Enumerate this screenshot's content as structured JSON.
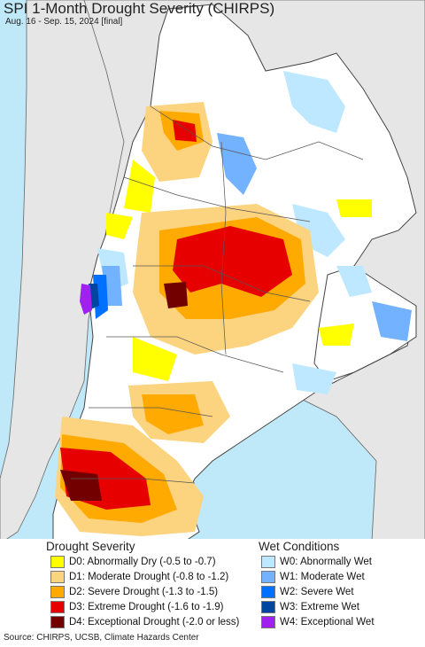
{
  "title": "SPI 1-Month Drought Severity (CHIRPS)",
  "subtitle": "Aug. 16 - Sep. 15, 2024 [final]",
  "legend": {
    "drought_heading": "Drought Severity",
    "wet_heading": "Wet Conditions",
    "drought": [
      {
        "label": "D0: Abnormally Dry (-0.5 to -0.7)",
        "color": "#ffff00"
      },
      {
        "label": "D1: Moderate Drought (-0.8 to -1.2)",
        "color": "#fcd37f"
      },
      {
        "label": "D2: Severe Drought (-1.3 to -1.5)",
        "color": "#ffaa00"
      },
      {
        "label": "D3: Extreme Drought (-1.6 to -1.9)",
        "color": "#e60000"
      },
      {
        "label": "D4: Exceptional Drought (-2.0 or less)",
        "color": "#730000"
      }
    ],
    "wet": [
      {
        "label": "W0: Abnormally Wet",
        "color": "#bee8ff"
      },
      {
        "label": "W1: Moderate Wet",
        "color": "#73b2ff"
      },
      {
        "label": "W2: Severe Wet",
        "color": "#0070ff"
      },
      {
        "label": "W3: Extreme Wet",
        "color": "#0046a0"
      },
      {
        "label": "W4: Exceptional Wet",
        "color": "#a020f0"
      }
    ]
  },
  "map_colors": {
    "ocean": "#bfe8f8",
    "outside_land": "#e6e6e6",
    "study_land": "#ffffff",
    "border": "#555555"
  },
  "source": "Source: CHIRPS, UCSB, Climate Hazards Center"
}
